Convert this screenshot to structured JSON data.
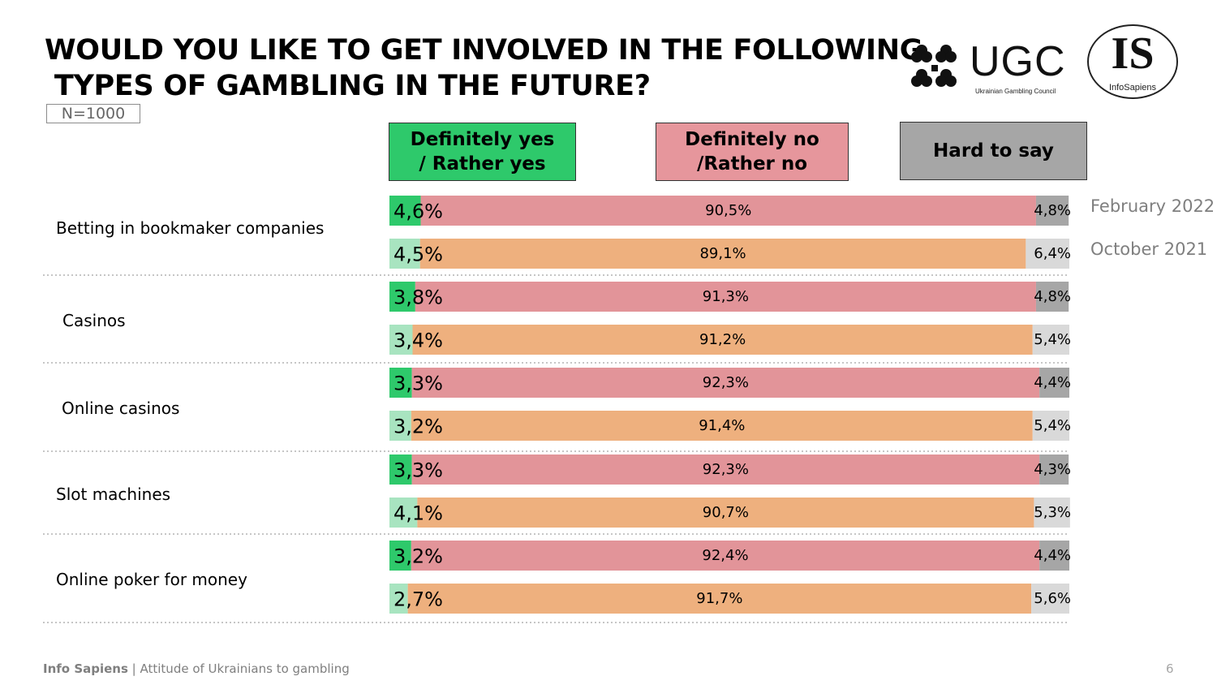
{
  "title": "WOULD YOU LIKE TO GET INVOLVED IN THE FOLLOWING\n TYPES OF GAMBLING IN THE FUTURE?",
  "sample": "N=1000",
  "legend": {
    "yes": "Definitely yes\n/ Rather yes",
    "no": "Definitely no\n/Rather no",
    "hard": "Hard to say"
  },
  "periods": [
    "February 2022",
    "October 2021"
  ],
  "logos": {
    "ugc": "UGC",
    "ugc_sub": "Ukrainian Gambling Council",
    "is": "IS",
    "is_sub": "InfoSapiens"
  },
  "footer": {
    "brand": "Info Sapiens",
    "separator": " | ",
    "text": "Attitude of Ukrainians to gambling",
    "page": "6"
  },
  "colors": {
    "yes_feb": "#2ec96b",
    "yes_oct": "#a8e4c0",
    "no_feb": "#e29499",
    "no_oct": "#eeb07e",
    "hard_feb": "#a6a6a6",
    "hard_oct": "#d9d9d9",
    "legend_yes": "#2ec96b",
    "legend_no": "#e6969c",
    "legend_hard": "#a6a6a6"
  },
  "chart_data": {
    "type": "bar",
    "orientation": "horizontal",
    "stacked": true,
    "xlim": [
      0,
      100
    ],
    "categories": [
      "Betting in bookmaker companies",
      "Casinos",
      "Online casinos",
      "Slot machines",
      "Online poker for money"
    ],
    "series": [
      {
        "name": "February 2022",
        "yes": [
          4.6,
          3.8,
          3.3,
          3.3,
          3.2
        ],
        "no": [
          90.5,
          91.3,
          92.3,
          92.3,
          92.4
        ],
        "hard": [
          4.8,
          4.8,
          4.4,
          4.3,
          4.4
        ],
        "yes_labels": [
          "4,6%",
          "3,8%",
          "3,3%",
          "3,3%",
          "3,2%"
        ],
        "no_labels": [
          "90,5%",
          "91,3%",
          "92,3%",
          "92,3%",
          "92,4%"
        ],
        "hard_labels": [
          "4,8%",
          "4,8%",
          "4,4%",
          "4,3%",
          "4,4%"
        ]
      },
      {
        "name": "October 2021",
        "yes": [
          4.5,
          3.4,
          3.2,
          4.1,
          2.7
        ],
        "no": [
          89.1,
          91.2,
          91.4,
          90.7,
          91.7
        ],
        "hard": [
          6.4,
          5.4,
          5.4,
          5.3,
          5.6
        ],
        "yes_labels": [
          "4,5%",
          "3,4%",
          "3,2%",
          "4,1%",
          "2,7%"
        ],
        "no_labels": [
          "89,1%",
          "91,2%",
          "91,4%",
          "90,7%",
          "91,7%"
        ],
        "hard_labels": [
          "6,4%",
          "5,4%",
          "5,4%",
          "5,3%",
          "5,6%"
        ]
      }
    ]
  }
}
